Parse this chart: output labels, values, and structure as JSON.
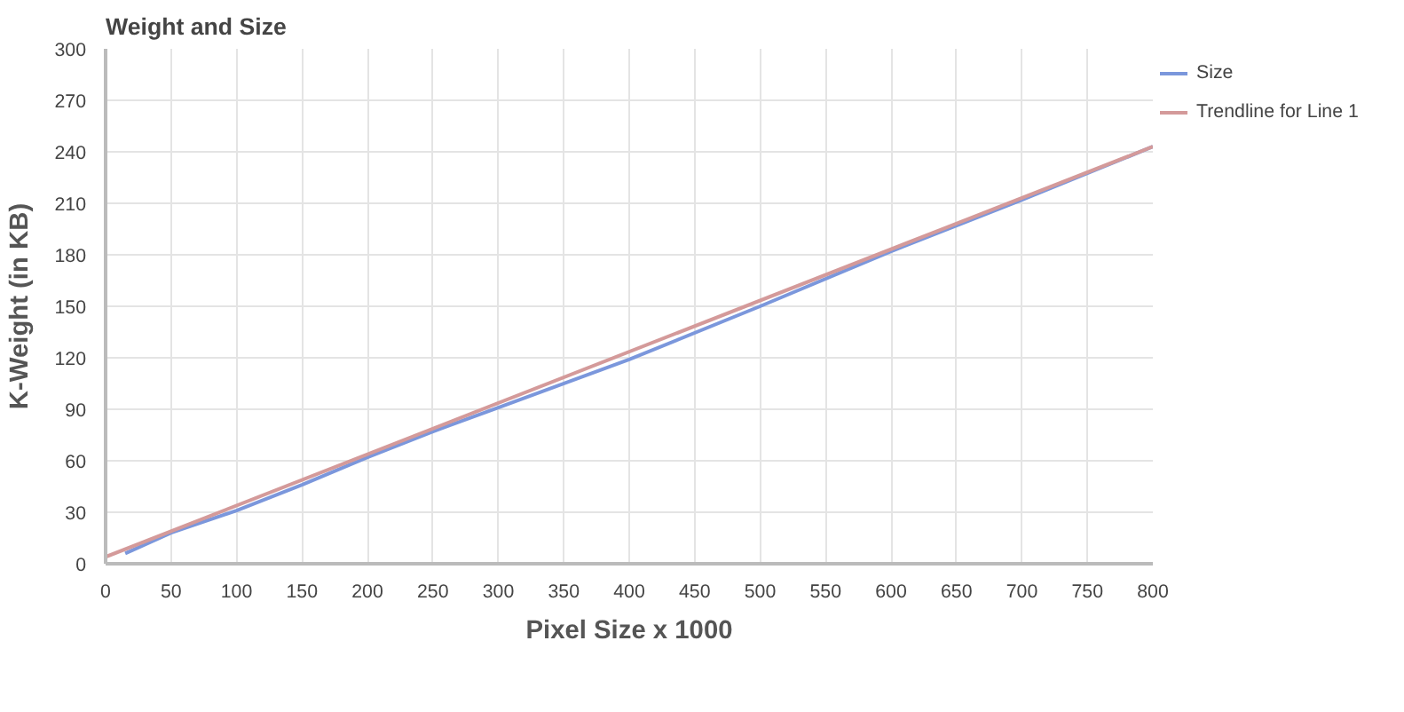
{
  "chart_data": {
    "type": "line",
    "title": "Weight and Size",
    "xlabel": "Pixel Size x 1000",
    "ylabel": "K-Weight (in KB)",
    "xlim": [
      0,
      800
    ],
    "xticks": [
      0,
      50,
      100,
      150,
      200,
      250,
      300,
      350,
      400,
      450,
      500,
      550,
      600,
      650,
      700,
      750,
      800
    ],
    "ylim": [
      0,
      300
    ],
    "yticks": [
      0,
      30,
      60,
      90,
      120,
      150,
      180,
      210,
      240,
      270,
      300
    ],
    "grid": true,
    "legend": "top right",
    "series": [
      {
        "name": "Size",
        "color": "#7b97dc",
        "x": [
          15,
          50,
          100,
          150,
          200,
          250,
          300,
          400,
          500,
          600,
          700,
          800
        ],
        "values": [
          6,
          18,
          31,
          46,
          62,
          77,
          91,
          119,
          150,
          182,
          212,
          243
        ]
      },
      {
        "name": "Trendline for Line 1",
        "color": "#d49a9a",
        "x": [
          0,
          800
        ],
        "values": [
          4,
          243
        ]
      }
    ]
  }
}
